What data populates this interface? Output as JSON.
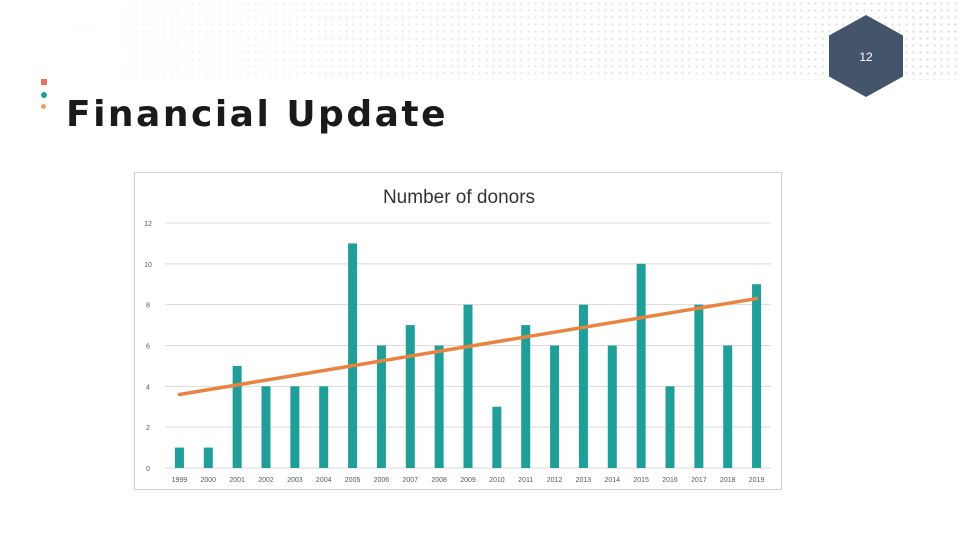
{
  "slide": {
    "title": "Financial Update",
    "number": "12"
  },
  "theme": {
    "badge_color": "#44546a",
    "marker_colors": [
      "#e8735a",
      "#1f9e9a",
      "#e6a064"
    ],
    "bar_color": "#1f9e9a",
    "trend_color": "#e8843f",
    "grid_color": "#d9d9d9"
  },
  "chart_data": {
    "type": "bar",
    "title": "Number of donors",
    "categories": [
      "1999",
      "2000",
      "2001",
      "2002",
      "2003",
      "2004",
      "2005",
      "2006",
      "2007",
      "2008",
      "2009",
      "2010",
      "2011",
      "2012",
      "2013",
      "2014",
      "2015",
      "2016",
      "2017",
      "2018",
      "2019"
    ],
    "values": [
      1,
      1,
      5,
      4,
      4,
      4,
      11,
      6,
      7,
      6,
      8,
      3,
      7,
      6,
      8,
      6,
      10,
      4,
      8,
      6,
      9
    ],
    "ylim": [
      0,
      12
    ],
    "yticks": [
      "0",
      "2",
      "4",
      "6",
      "8",
      "10",
      "12"
    ],
    "grid": true,
    "trendline": {
      "type": "linear",
      "start": 3.6,
      "end": 8.3
    }
  }
}
